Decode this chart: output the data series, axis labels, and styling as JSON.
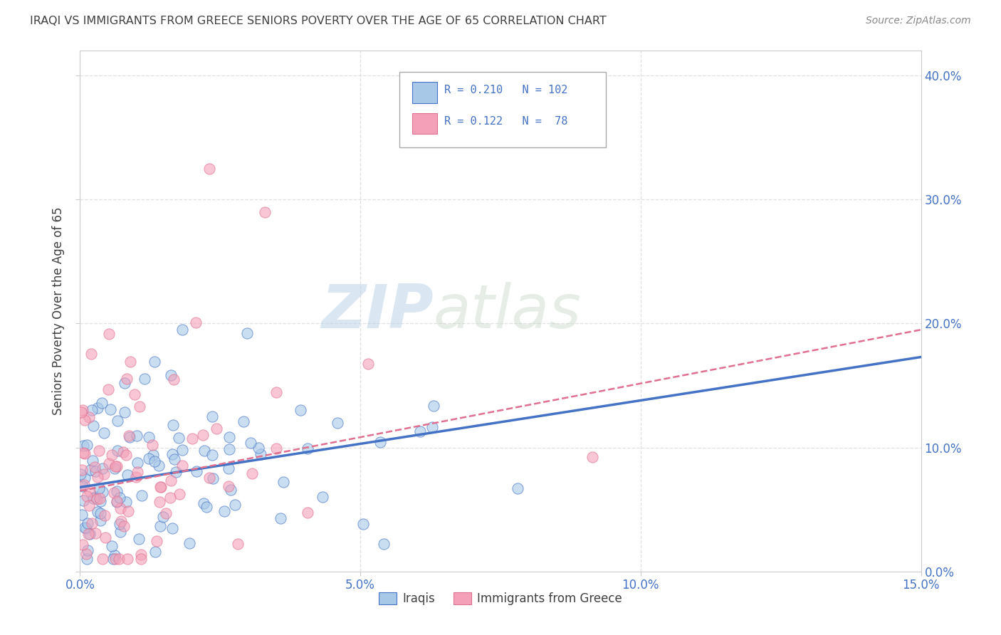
{
  "title": "IRAQI VS IMMIGRANTS FROM GREECE SENIORS POVERTY OVER THE AGE OF 65 CORRELATION CHART",
  "source": "Source: ZipAtlas.com",
  "ylabel": "Seniors Poverty Over the Age of 65",
  "xmin": 0.0,
  "xmax": 0.15,
  "ymin": 0.0,
  "ymax": 0.42,
  "color_iraqi": "#a8c8e8",
  "color_greece": "#f4a0b8",
  "trendline_iraqi": "#4472c4",
  "trendline_greece": "#e07090",
  "background": "#ffffff",
  "grid_color": "#dddddd",
  "title_color": "#404040",
  "source_color": "#888888",
  "legend_value_color": "#4472c4",
  "watermark_color": "#ccddeeff",
  "n_iraqi": 102,
  "n_greece": 78,
  "r_iraqi": 0.21,
  "r_greece": 0.122,
  "trendline_iraqi_x0": 0.0,
  "trendline_iraqi_y0": 0.068,
  "trendline_iraqi_x1": 0.15,
  "trendline_iraqi_y1": 0.173,
  "trendline_greece_x0": 0.0,
  "trendline_greece_y0": 0.065,
  "trendline_greece_x1": 0.15,
  "trendline_greece_y1": 0.195
}
